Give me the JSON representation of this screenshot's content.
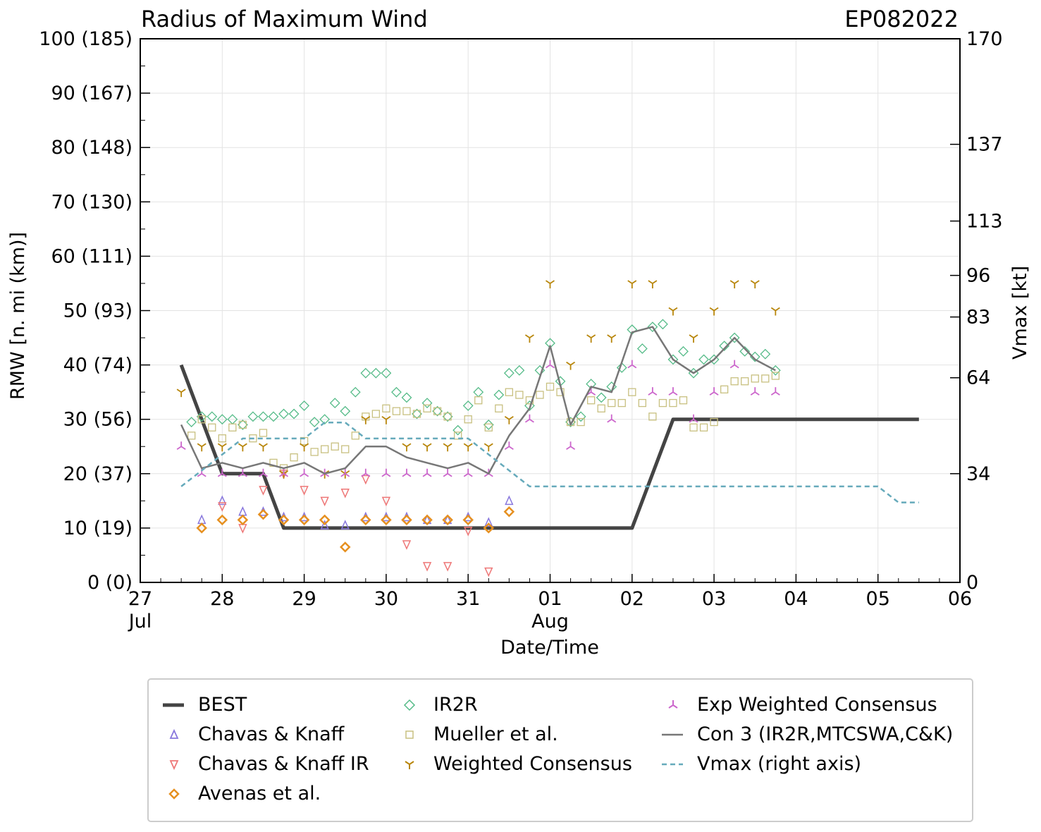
{
  "chart_data": {
    "type": "scatter",
    "title": "Radius of Maximum Wind",
    "storm_id": "EP082022",
    "xlabel": "Date/Time",
    "ylabel": "RMW [n. mi (km)]",
    "y2label": "Vmax [kt]",
    "xlim": [
      0,
      10
    ],
    "ylim": [
      0,
      100
    ],
    "y2lim": [
      0,
      170
    ],
    "x_unit": "days since 27 Jul 00Z",
    "x_ticks": [
      {
        "x": 0,
        "label": "27",
        "sub": "Jul"
      },
      {
        "x": 1,
        "label": "28",
        "sub": ""
      },
      {
        "x": 2,
        "label": "29",
        "sub": ""
      },
      {
        "x": 3,
        "label": "30",
        "sub": ""
      },
      {
        "x": 4,
        "label": "31",
        "sub": ""
      },
      {
        "x": 5,
        "label": "01",
        "sub": "Aug"
      },
      {
        "x": 6,
        "label": "02",
        "sub": ""
      },
      {
        "x": 7,
        "label": "03",
        "sub": ""
      },
      {
        "x": 8,
        "label": "04",
        "sub": ""
      },
      {
        "x": 9,
        "label": "05",
        "sub": ""
      },
      {
        "x": 10,
        "label": "06",
        "sub": ""
      }
    ],
    "y_ticks": [
      {
        "y": 0,
        "label": "0 (0)"
      },
      {
        "y": 10,
        "label": "10 (19)"
      },
      {
        "y": 20,
        "label": "20 (37)"
      },
      {
        "y": 30,
        "label": "30 (56)"
      },
      {
        "y": 40,
        "label": "40 (74)"
      },
      {
        "y": 50,
        "label": "50 (93)"
      },
      {
        "y": 60,
        "label": "60 (111)"
      },
      {
        "y": 70,
        "label": "70 (130)"
      },
      {
        "y": 80,
        "label": "80 (148)"
      },
      {
        "y": 90,
        "label": "90 (167)"
      },
      {
        "y": 100,
        "label": "100 (185)"
      }
    ],
    "y2_ticks": [
      {
        "y": 0,
        "label": "0"
      },
      {
        "y": 34,
        "label": "34"
      },
      {
        "y": 64,
        "label": "64"
      },
      {
        "y": 83,
        "label": "83"
      },
      {
        "y": 96,
        "label": "96"
      },
      {
        "y": 113,
        "label": "113"
      },
      {
        "y": 137,
        "label": "137"
      },
      {
        "y": 170,
        "label": "170"
      }
    ],
    "series": [
      {
        "name": "BEST",
        "style": "line",
        "color": "#444444",
        "x": [
          0.5,
          1.0,
          1.25,
          1.5,
          1.75,
          2,
          3,
          4,
          5,
          6,
          6.5,
          7,
          8,
          9,
          9.5
        ],
        "y": [
          40,
          20,
          20,
          20,
          10,
          10,
          10,
          10,
          10,
          10,
          30,
          30,
          30,
          30,
          30
        ]
      },
      {
        "name": "Chavas & Knaff",
        "style": "tri_up",
        "color": "#8877dd",
        "x": [
          0.75,
          1.0,
          1.25,
          1.5,
          1.75,
          2.0,
          2.25,
          2.5,
          2.75,
          3.0,
          3.25,
          3.5,
          3.75,
          4.0,
          4.25,
          4.5
        ],
        "y": [
          11.5,
          15,
          13,
          13,
          12,
          12,
          10.5,
          10.5,
          12,
          12,
          12,
          11.5,
          11.5,
          12,
          11,
          15
        ]
      },
      {
        "name": "Chavas & Knaff IR",
        "style": "tri_down",
        "color": "#ee7777",
        "x": [
          1.0,
          1.25,
          1.5,
          1.75,
          2.0,
          2.25,
          2.5,
          2.75,
          3.0,
          3.25,
          3.5,
          3.75,
          4.0,
          4.25
        ],
        "y": [
          14,
          10,
          17,
          20,
          17,
          15,
          16.5,
          19,
          15,
          7,
          3,
          3,
          9.5,
          2
        ]
      },
      {
        "name": "Avenas et al.",
        "style": "diamond",
        "color": "#e69020",
        "x": [
          0.75,
          1.0,
          1.25,
          1.5,
          1.75,
          2.0,
          2.25,
          2.5,
          2.75,
          3.0,
          3.25,
          3.5,
          3.75,
          4.0,
          4.25,
          4.5
        ],
        "y": [
          10,
          11.5,
          11.5,
          12.5,
          11.5,
          11.5,
          11.5,
          6.5,
          11.5,
          11.5,
          11.5,
          11.5,
          11.5,
          11.5,
          10,
          13
        ]
      },
      {
        "name": "IR2R",
        "style": "diamond",
        "color": "#55bb88",
        "x": [
          0.625,
          0.75,
          0.875,
          1.0,
          1.125,
          1.25,
          1.375,
          1.5,
          1.625,
          1.75,
          1.875,
          2.0,
          2.125,
          2.25,
          2.375,
          2.5,
          2.625,
          2.75,
          2.875,
          3.0,
          3.125,
          3.25,
          3.375,
          3.5,
          3.625,
          3.75,
          3.875,
          4.0,
          4.125,
          4.25,
          4.375,
          4.5,
          4.625,
          4.75,
          4.875,
          5.0,
          5.125,
          5.25,
          5.375,
          5.5,
          5.625,
          5.75,
          5.875,
          6.0,
          6.125,
          6.25,
          6.375,
          6.5,
          6.625,
          6.75,
          6.875,
          7.0,
          7.125,
          7.25,
          7.375,
          7.5,
          7.625,
          7.75
        ],
        "y": [
          29.5,
          30.5,
          30.5,
          30,
          30,
          29,
          30.5,
          30.5,
          30.5,
          31,
          31,
          32.5,
          29.5,
          30,
          33,
          31.5,
          35,
          38.5,
          38.5,
          38.5,
          35,
          34,
          31,
          33,
          31.5,
          30.5,
          28,
          32.5,
          35,
          29,
          34.5,
          38.5,
          39,
          32.5,
          39,
          44,
          37,
          29.5,
          30.5,
          36.5,
          34,
          36,
          39.5,
          46.5,
          43,
          47,
          47.5,
          41,
          42.5,
          38.5,
          41,
          41,
          43.5,
          45,
          42.5,
          41.5,
          42,
          39
        ]
      },
      {
        "name": "Mueller et al.",
        "style": "square",
        "color": "#c8c080",
        "x": [
          0.625,
          0.75,
          0.875,
          1.0,
          1.125,
          1.25,
          1.375,
          1.5,
          1.625,
          1.75,
          1.875,
          2.0,
          2.125,
          2.25,
          2.375,
          2.5,
          2.625,
          2.75,
          2.875,
          3.0,
          3.125,
          3.25,
          3.375,
          3.5,
          3.625,
          3.75,
          3.875,
          4.0,
          4.125,
          4.25,
          4.375,
          4.5,
          4.625,
          4.75,
          4.875,
          5.0,
          5.125,
          5.25,
          5.375,
          5.5,
          5.625,
          5.75,
          5.875,
          6.0,
          6.125,
          6.25,
          6.375,
          6.5,
          6.625,
          6.75,
          6.875,
          7.0,
          7.125,
          7.25,
          7.375,
          7.5,
          7.625,
          7.75
        ],
        "y": [
          27,
          30,
          28.5,
          26.5,
          28.5,
          29,
          26.5,
          27.5,
          22,
          21,
          23,
          26,
          24,
          24.5,
          25,
          24.5,
          27,
          30.5,
          31,
          32,
          31.5,
          31.5,
          31,
          32,
          31.5,
          30.5,
          27,
          30,
          33.5,
          28.5,
          32,
          35,
          34.5,
          33.5,
          34.5,
          36,
          35,
          29.5,
          29.5,
          33.5,
          32,
          33,
          33,
          35,
          33,
          30.5,
          33,
          33,
          33.5,
          28.5,
          28.5,
          29.5,
          35.5,
          37,
          37,
          37.5,
          37.5,
          38
        ]
      },
      {
        "name": "Weighted Consensus",
        "style": "tri_y",
        "color": "#b8860b",
        "x": [
          0.5,
          0.75,
          1.0,
          1.25,
          1.5,
          1.75,
          2.0,
          2.25,
          2.5,
          2.75,
          3.0,
          3.25,
          3.5,
          3.75,
          4.0,
          4.25,
          4.5,
          4.75,
          5.0,
          5.25,
          5.5,
          5.75,
          6.0,
          6.25,
          6.5,
          6.75,
          7.0,
          7.25,
          7.5,
          7.75
        ],
        "y": [
          35,
          25,
          25,
          25,
          25,
          20,
          25,
          20,
          20,
          30,
          30,
          25,
          25,
          25,
          25,
          25,
          30,
          45,
          55,
          40,
          45,
          45,
          55,
          55,
          50,
          45,
          50,
          55,
          55,
          50
        ]
      },
      {
        "name": "Exp Weighted Consensus",
        "style": "tri_y",
        "color": "#cc66cc",
        "x": [
          0.5,
          0.75,
          1.0,
          1.25,
          1.5,
          1.75,
          2.0,
          2.25,
          2.5,
          2.75,
          3.0,
          3.25,
          3.5,
          3.75,
          4.0,
          4.25,
          4.5,
          4.75,
          5.0,
          5.25,
          5.5,
          5.75,
          6.0,
          6.25,
          6.5,
          6.75,
          7.0,
          7.25,
          7.5,
          7.75
        ],
        "y": [
          25,
          20,
          20,
          20,
          20,
          20,
          20,
          20,
          20,
          20,
          20,
          20,
          20,
          20,
          20,
          20,
          25,
          30,
          40,
          25,
          35,
          30,
          40,
          35,
          35,
          30,
          35,
          40,
          35,
          35
        ]
      },
      {
        "name": "Con 3 (IR2R,MTCSWA,C&K)",
        "style": "line",
        "color": "#777777",
        "x": [
          0.5,
          0.75,
          1.0,
          1.25,
          1.5,
          1.75,
          2.0,
          2.25,
          2.5,
          2.75,
          3.0,
          3.25,
          3.5,
          3.75,
          4.0,
          4.25,
          4.5,
          4.75,
          5.0,
          5.25,
          5.5,
          5.75,
          6.0,
          6.25,
          6.5,
          6.75,
          7.0,
          7.25,
          7.5,
          7.75
        ],
        "y": [
          29,
          21,
          22,
          21,
          22,
          21,
          22,
          20,
          21,
          25,
          25,
          23,
          22,
          21,
          22,
          20,
          27,
          32,
          43.5,
          29,
          36,
          35,
          46,
          47,
          41,
          38.5,
          41,
          45,
          41,
          39
        ]
      },
      {
        "name": "Vmax (right axis)",
        "style": "dashed",
        "color": "#66aabb",
        "axis": "right",
        "x": [
          0.5,
          0.75,
          1.0,
          1.25,
          1.5,
          2.0,
          2.25,
          2.5,
          2.75,
          3.0,
          4.0,
          4.25,
          4.5,
          4.75,
          5.0,
          6.0,
          7.0,
          8.0,
          9.0,
          9.25,
          9.5
        ],
        "y": [
          30,
          35,
          40,
          45,
          45,
          45,
          50,
          50,
          45,
          45,
          45,
          40,
          35,
          30,
          30,
          30,
          30,
          30,
          30,
          25,
          25
        ]
      }
    ]
  }
}
